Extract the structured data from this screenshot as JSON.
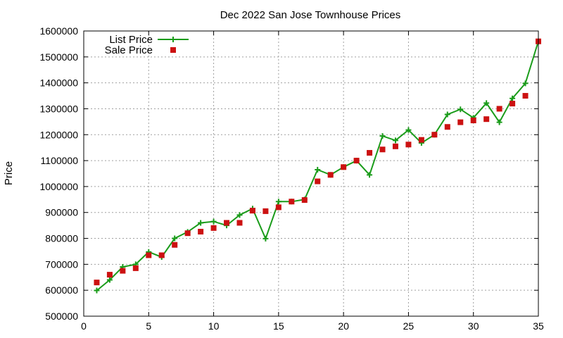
{
  "chart_data": {
    "type": "line",
    "title": "Dec 2022 San Jose Townhouse Prices",
    "xlabel": "",
    "ylabel": "Price",
    "xlim": [
      0,
      35
    ],
    "ylim": [
      500000,
      1600000
    ],
    "x_ticks": [
      "0",
      "5",
      "10",
      "15",
      "20",
      "25",
      "30",
      "35"
    ],
    "y_ticks": [
      "500000",
      "600000",
      "700000",
      "800000",
      "900000",
      "1000000",
      "1100000",
      "1200000",
      "1300000",
      "1400000",
      "1500000",
      "1600000"
    ],
    "grid": true,
    "legend_position": "top-left",
    "x": [
      1,
      2,
      3,
      4,
      5,
      6,
      7,
      8,
      9,
      10,
      11,
      12,
      13,
      14,
      15,
      16,
      17,
      18,
      19,
      20,
      21,
      22,
      23,
      24,
      25,
      26,
      27,
      28,
      29,
      30,
      31,
      32,
      33,
      34,
      35
    ],
    "series": [
      {
        "name": "List Price",
        "style": "line-with-plus-markers",
        "color": "#1a9c1a",
        "values": [
          599000,
          640000,
          690000,
          700000,
          748000,
          728000,
          800000,
          825000,
          860000,
          865000,
          850000,
          890000,
          915000,
          799000,
          942000,
          942000,
          950000,
          1065000,
          1045000,
          1075000,
          1100000,
          1045000,
          1195000,
          1178000,
          1218000,
          1168000,
          1200000,
          1278000,
          1298000,
          1265000,
          1322000,
          1248000,
          1340000,
          1398000,
          1560000
        ]
      },
      {
        "name": "Sale Price",
        "style": "square-markers",
        "color": "#cc1111",
        "values": [
          630000,
          660000,
          675000,
          685000,
          735000,
          735000,
          775000,
          820000,
          826000,
          840000,
          860000,
          860000,
          907000,
          905000,
          920000,
          942000,
          948000,
          1020000,
          1045000,
          1075000,
          1100000,
          1130000,
          1143000,
          1155000,
          1162000,
          1180000,
          1200000,
          1230000,
          1248000,
          1255000,
          1260000,
          1300000,
          1320000,
          1350000,
          1560000
        ]
      }
    ]
  }
}
